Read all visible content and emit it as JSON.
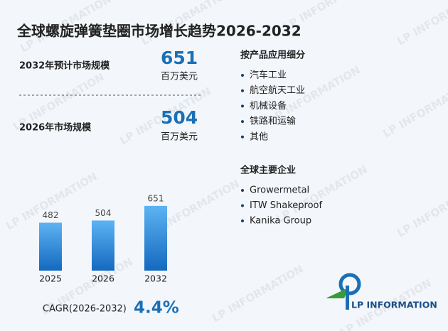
{
  "title": "全球螺旋弹簧垫圈市场增长趋势2026-2032",
  "stats": [
    {
      "label": "2032年预计市场规模",
      "value": 651,
      "unit": "百万美元"
    },
    {
      "label": "2026年市场规模",
      "value": 504,
      "unit": "百万美元"
    }
  ],
  "segments": {
    "heading": "按产品应用细分",
    "items": [
      "汽车工业",
      "航空航天工业",
      "机械设备",
      "铁路和运输",
      "其他"
    ]
  },
  "companies": {
    "heading": "全球主要企业",
    "items": [
      "Growermetal",
      "ITW Shakeproof",
      "Kanika Group"
    ]
  },
  "cagr": {
    "label": "CAGR(2026-2032)",
    "value": "4.4%"
  },
  "logo": "LP INFORMATION",
  "watermark": "LP INFORMATION",
  "chart_data": {
    "type": "bar",
    "categories": [
      "2025",
      "2026",
      "2032"
    ],
    "values": [
      482,
      504,
      651
    ],
    "ylim": [
      0,
      700
    ],
    "color_top": "#5db3f2",
    "color_bottom": "#1469c0"
  }
}
